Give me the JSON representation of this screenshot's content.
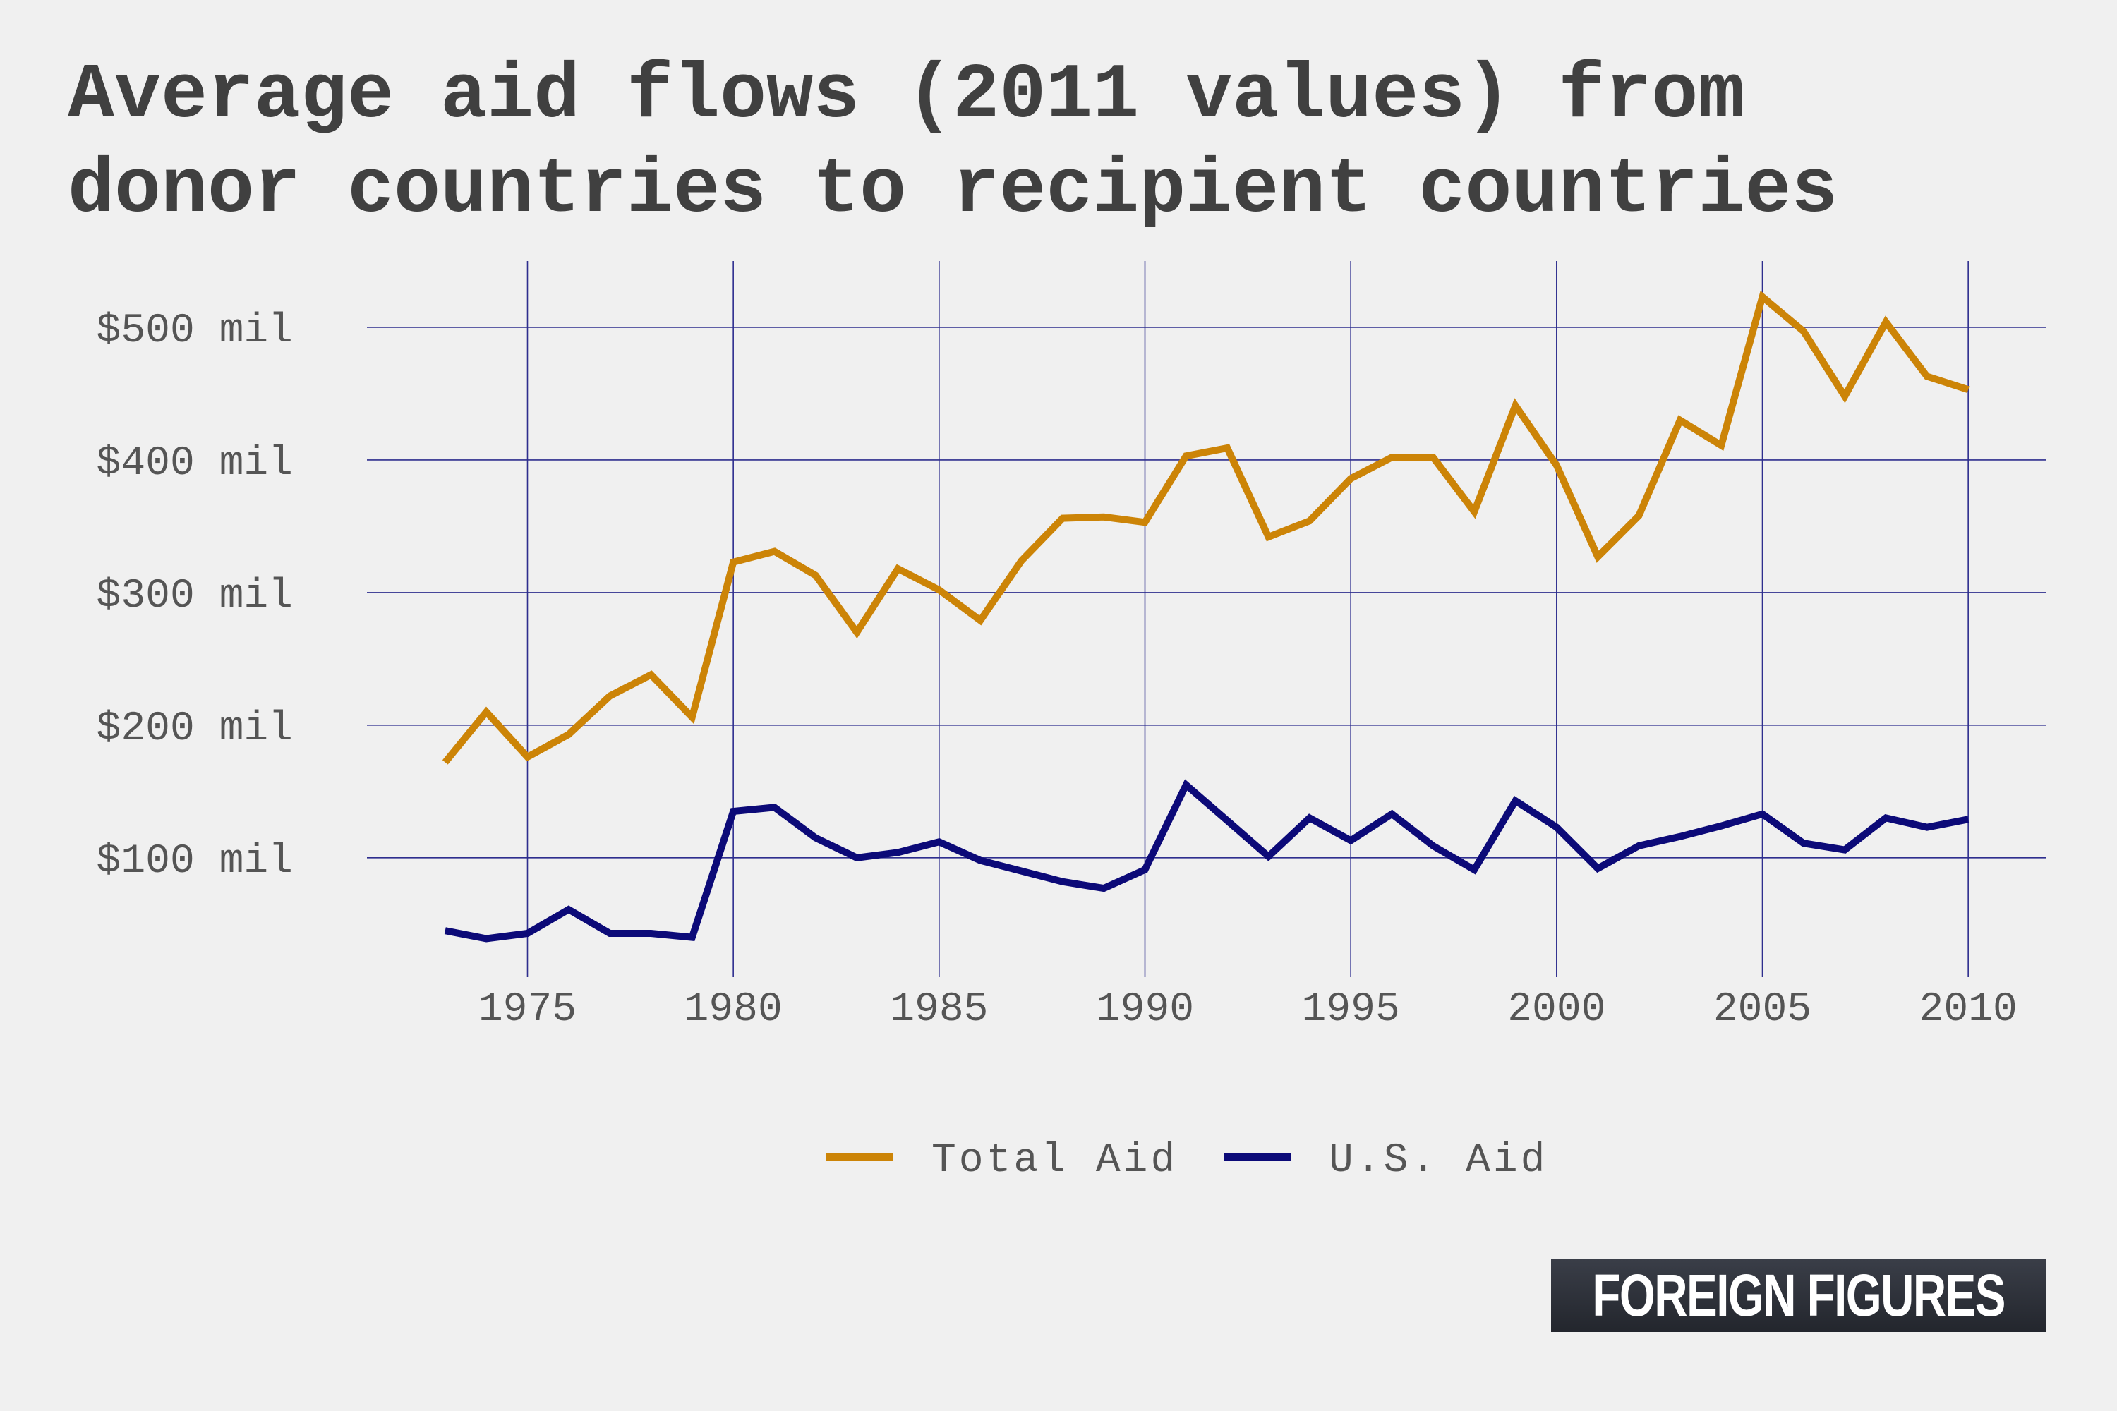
{
  "title_lines": [
    "Average aid flows (2011 values) from",
    "donor countries to recipient countries"
  ],
  "brand": "FOREIGN FIGURES",
  "colors": {
    "total": "#cc8407",
    "us": "#0c0a78",
    "grid": "#2e2e8e",
    "background": "#f0f0f0"
  },
  "chart_data": {
    "type": "line",
    "title": "Average aid flows (2011 values) from donor countries to recipient countries",
    "x_ticks": [
      1975,
      1980,
      1985,
      1990,
      1995,
      2000,
      2005,
      2010
    ],
    "y_ticks": [
      100,
      200,
      300,
      400,
      500
    ],
    "y_tick_labels": [
      "$100 mil",
      "$200 mil",
      "$300 mil",
      "$400 mil",
      "$500 mil"
    ],
    "xlim": [
      1971.1,
      2011.9
    ],
    "ylim": [
      10,
      550
    ],
    "grid": true,
    "legend_position": "bottom",
    "x": [
      1973,
      1974,
      1975,
      1976,
      1977,
      1978,
      1979,
      1980,
      1981,
      1982,
      1983,
      1984,
      1985,
      1986,
      1987,
      1988,
      1989,
      1990,
      1991,
      1992,
      1993,
      1994,
      1995,
      1996,
      1997,
      1998,
      1999,
      2000,
      2001,
      2002,
      2003,
      2004,
      2005,
      2006,
      2007,
      2008,
      2009,
      2010
    ],
    "series": [
      {
        "name": "Total Aid",
        "color": "#cc8407",
        "values": [
          172,
          210,
          176,
          193,
          222,
          238,
          206,
          323,
          331,
          313,
          270,
          318,
          302,
          279,
          324,
          356,
          357,
          353,
          403,
          409,
          342,
          354,
          386,
          402,
          402,
          361,
          441,
          396,
          327,
          358,
          430,
          411,
          523,
          497,
          448,
          504,
          463,
          453
        ]
      },
      {
        "name": "U.S. Aid",
        "color": "#0c0a78",
        "values": [
          45,
          39,
          43,
          61,
          43,
          43,
          40,
          135,
          138,
          115,
          100,
          104,
          112,
          98,
          90,
          82,
          77,
          91,
          155,
          128,
          101,
          130,
          113,
          133,
          109,
          91,
          143,
          123,
          92,
          109,
          116,
          124,
          133,
          111,
          106,
          130,
          123,
          129
        ]
      }
    ]
  }
}
